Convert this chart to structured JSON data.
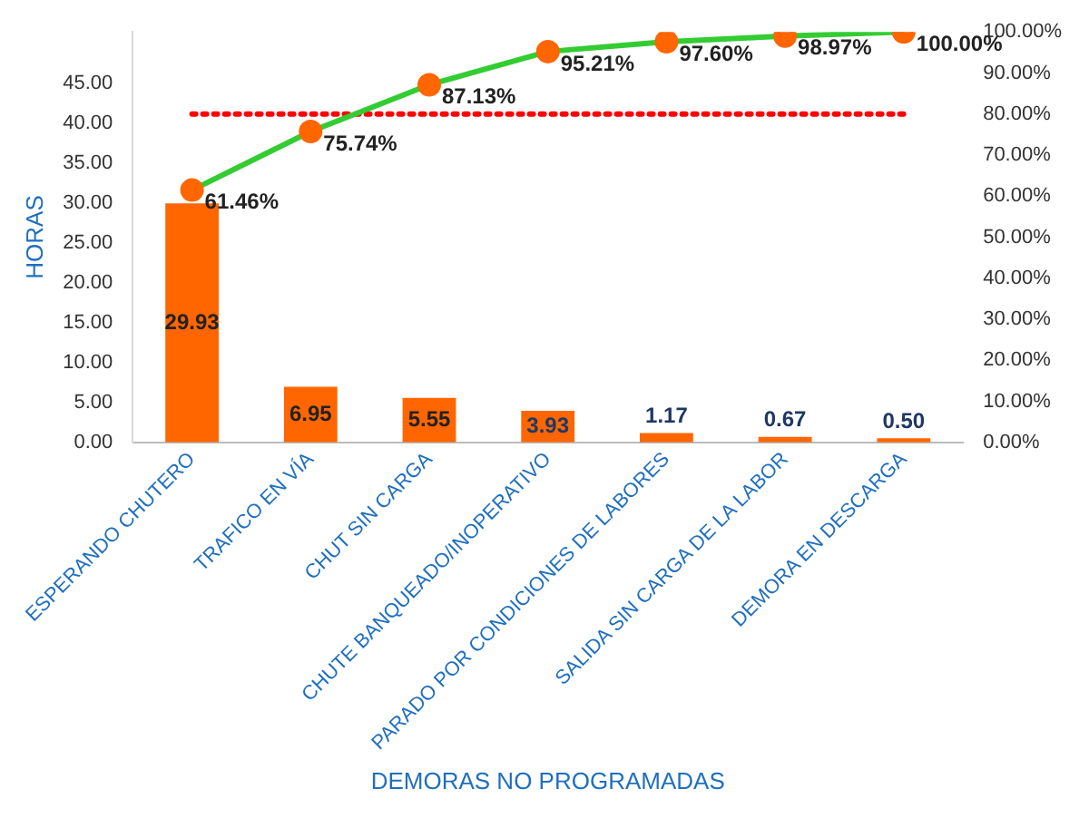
{
  "chart_data": {
    "type": "bar",
    "xlabel": "DEMORAS NO PROGRAMADAS",
    "ylabel": "HORAS",
    "categories": [
      "ESPERANDO CHUTERO",
      "TRAFICO EN VÍA",
      "CHUT SIN CARGA",
      "CHUTE BANQUEADO/INOPERATIVO",
      "PARADO POR CONDICIONES DE LABORES",
      "SALIDA SIN CARGA DE LA LABOR",
      "DEMORA EN DESCARGA"
    ],
    "series": [
      {
        "color": "#ff6600",
        "values": [
          29.93,
          6.95,
          5.55,
          3.93,
          1.17,
          0.67,
          0.5
        ],
        "value_labels": [
          "29.93",
          "6.95",
          "5.55",
          "3.93",
          "1.17",
          "0.67",
          "0.50"
        ]
      },
      {
        "type": "line",
        "axis": "y2",
        "color": "#33cc33",
        "marker": "circle",
        "values": [
          61.46,
          75.74,
          87.13,
          95.21,
          97.6,
          98.97,
          100.0
        ],
        "value_labels": [
          "61.46%",
          "75.74%",
          "87.13%",
          "95.21%",
          "97.60%",
          "98.97%",
          "100.00%"
        ]
      }
    ],
    "ylim": [
      0,
      51.4
    ],
    "yticks": [
      {
        "value": 0,
        "label": "0.00"
      },
      {
        "value": 5,
        "label": "5.00"
      },
      {
        "value": 10,
        "label": "10.00"
      },
      {
        "value": 15,
        "label": "15.00"
      },
      {
        "value": 20,
        "label": "20.00"
      },
      {
        "value": 25,
        "label": "25.00"
      },
      {
        "value": 30,
        "label": "30.00"
      },
      {
        "value": 35,
        "label": "35.00"
      },
      {
        "value": 40,
        "label": "40.00"
      },
      {
        "value": 45,
        "label": "45.00"
      }
    ],
    "y2lim": [
      0,
      100
    ],
    "y2ticks": [
      {
        "value": 0,
        "label": "0.00%"
      },
      {
        "value": 10,
        "label": "10.00%"
      },
      {
        "value": 20,
        "label": "20.00%"
      },
      {
        "value": 30,
        "label": "30.00%"
      },
      {
        "value": 40,
        "label": "40.00%"
      },
      {
        "value": 50,
        "label": "50.00%"
      },
      {
        "value": 60,
        "label": "60.00%"
      },
      {
        "value": 70,
        "label": "70.00%"
      },
      {
        "value": 80,
        "label": "80.00%"
      },
      {
        "value": 90,
        "label": "90.00%"
      },
      {
        "value": 100,
        "label": "100.00%"
      }
    ],
    "ref_lines": [
      {
        "axis": "y2",
        "value": 80,
        "color": "#ff0000",
        "line_style": "dotted"
      }
    ],
    "grid": false,
    "legend": false
  }
}
